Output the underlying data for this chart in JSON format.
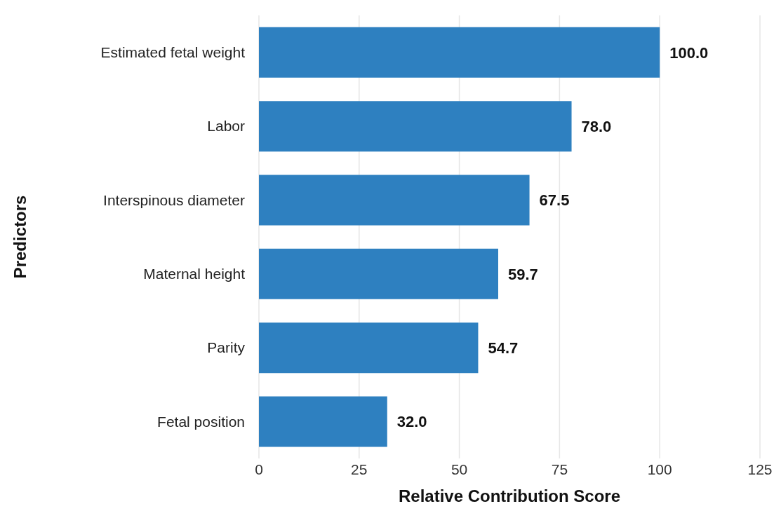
{
  "chart_data": {
    "type": "bar",
    "orientation": "horizontal",
    "xlabel": "Relative Contribution Score",
    "ylabel": "Predictors",
    "categories": [
      "Estimated fetal weight",
      "Labor",
      "Interspinous diameter",
      "Maternal height",
      "Parity",
      "Fetal position"
    ],
    "values": [
      100.0,
      78.0,
      67.5,
      59.7,
      54.7,
      32.0
    ],
    "value_labels": [
      "100.0",
      "78.0",
      "67.5",
      "59.7",
      "54.7",
      "32.0"
    ],
    "color": "#2e80c0",
    "xlim": [
      0,
      125
    ],
    "xticks": [
      0,
      25,
      50,
      75,
      100,
      125
    ],
    "grid": "x",
    "legend": false
  }
}
